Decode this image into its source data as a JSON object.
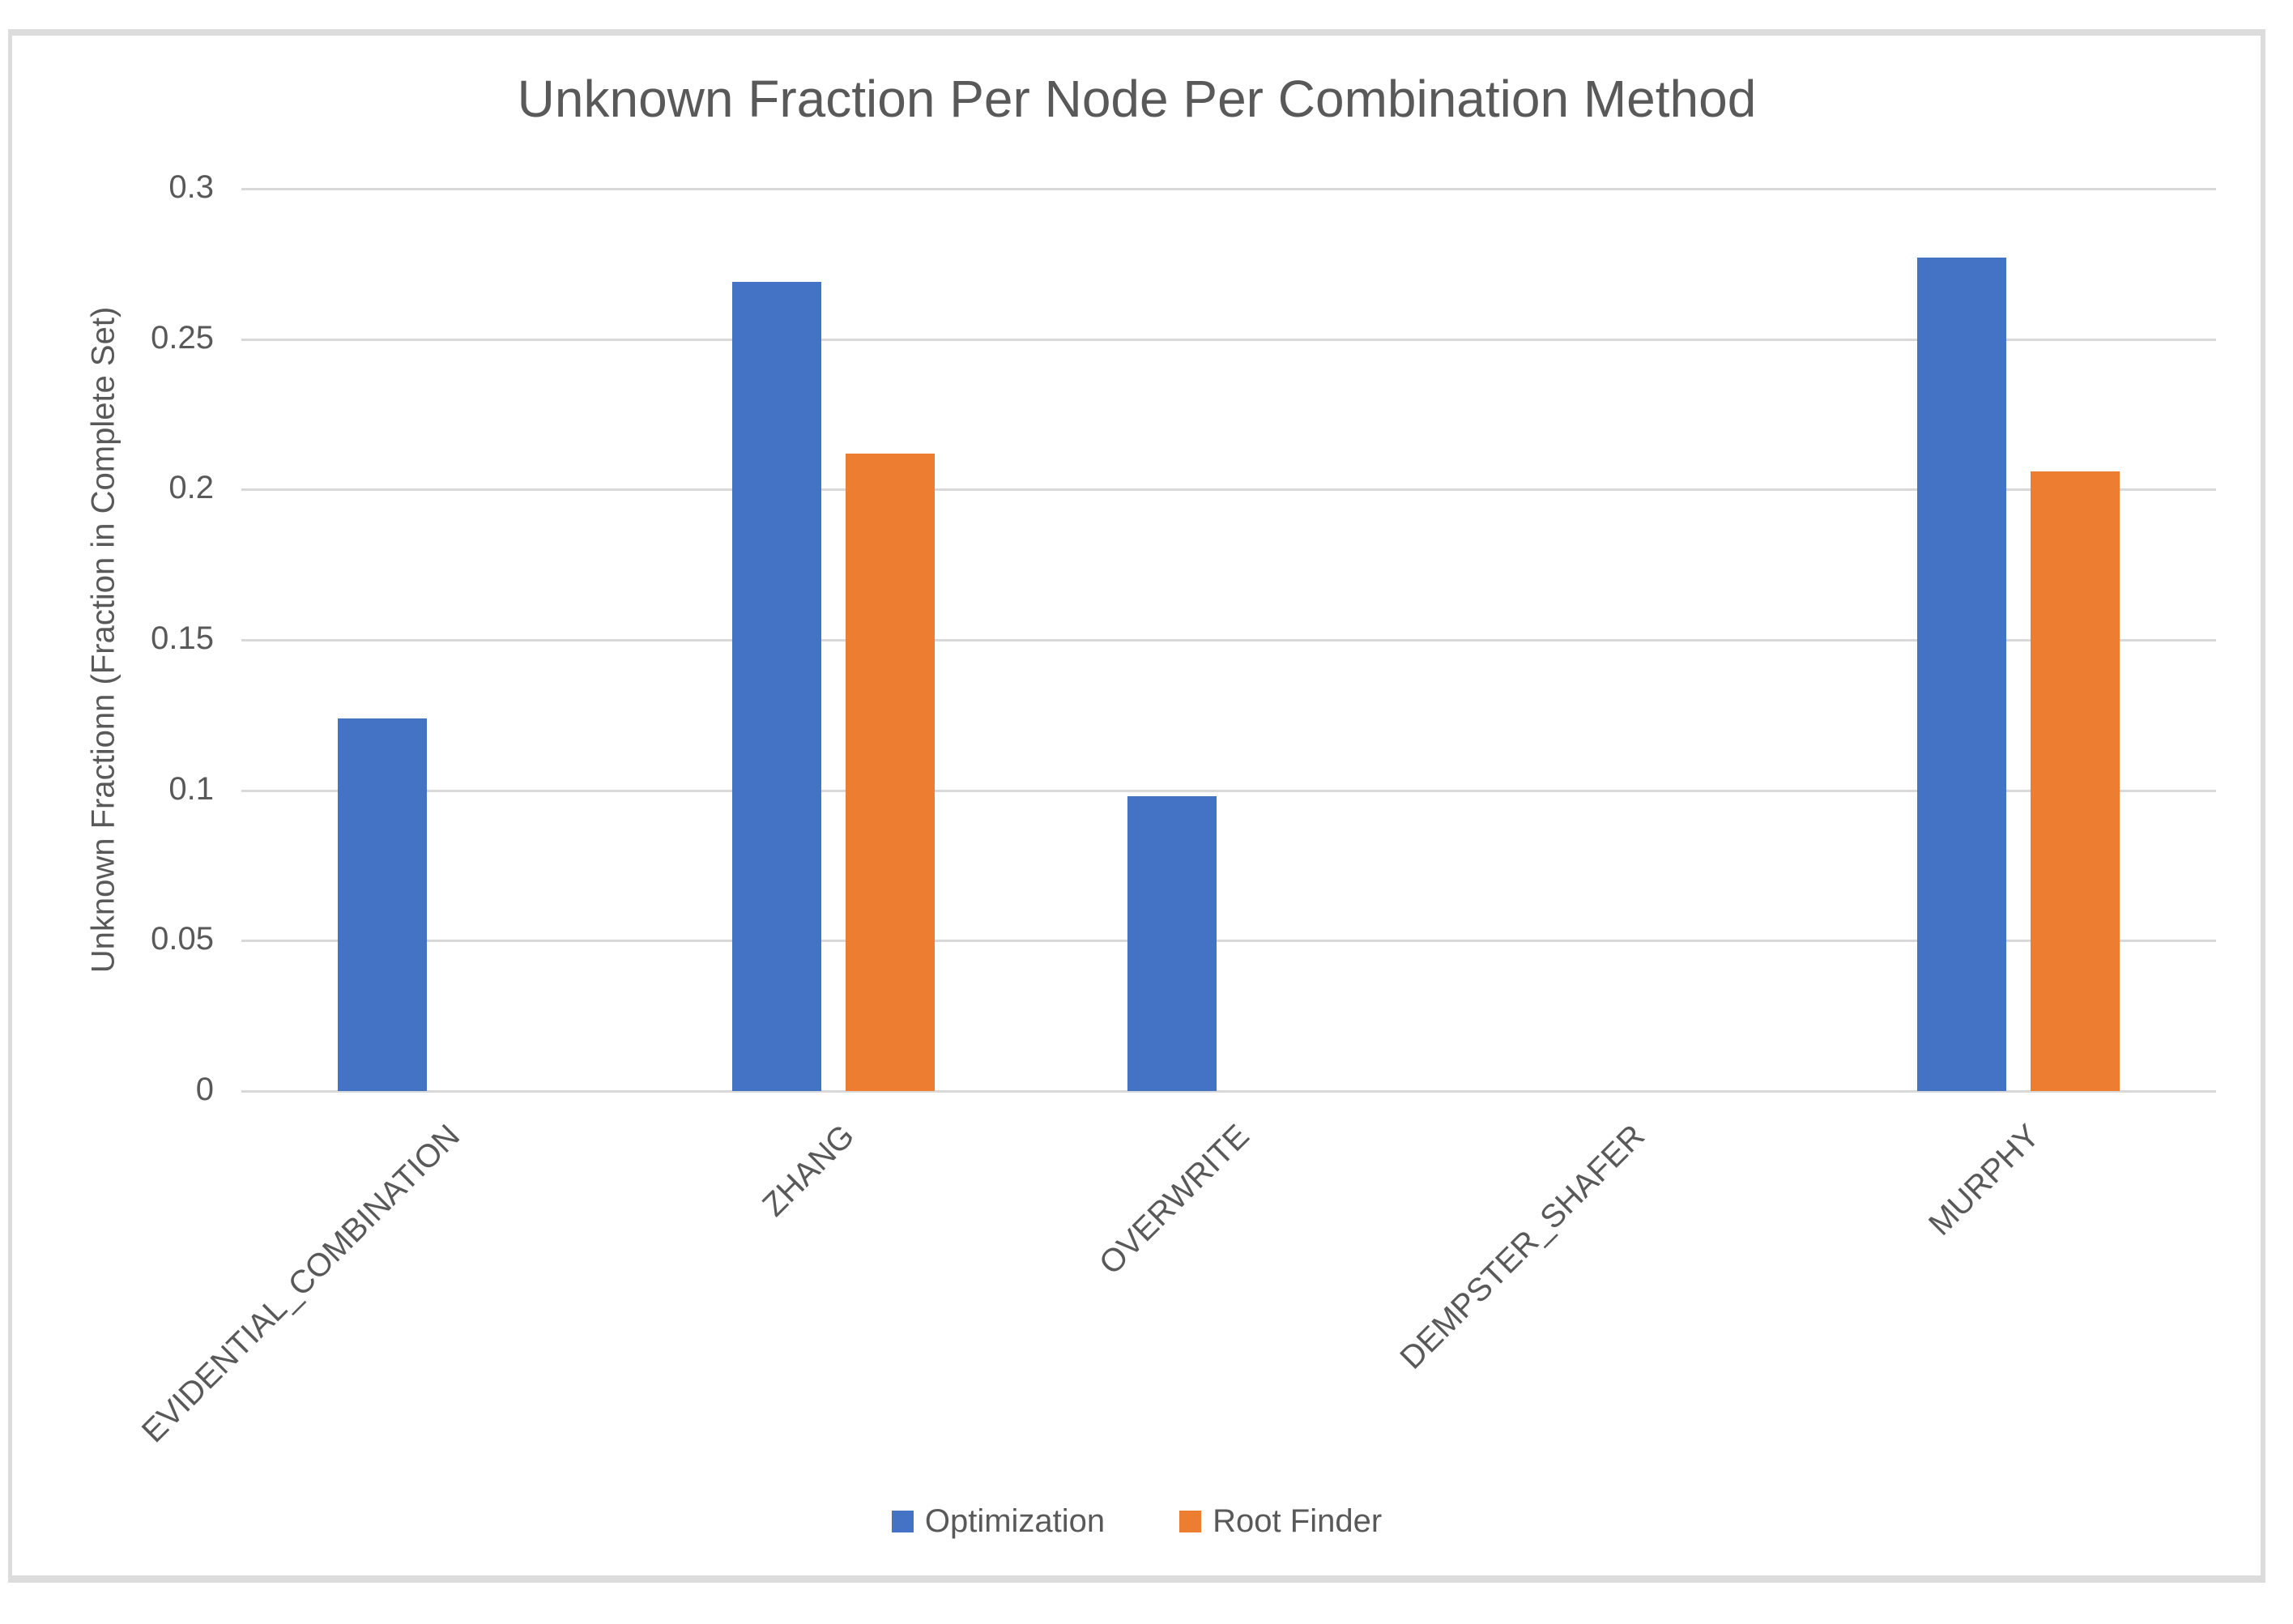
{
  "chart": {
    "title": "Unknown Fraction Per Node Per Combination Method",
    "y_axis_title": "Unknown Fractionn (Fraction in Complete Set)"
  },
  "chart_data": {
    "type": "bar",
    "title": "Unknown Fraction Per Node Per Combination Method",
    "categories": [
      "EVIDENTIAL_COMBINATION",
      "ZHANG",
      "OVERWRITE",
      "DEMPSTER_SHAFER",
      "MURPHY"
    ],
    "series": [
      {
        "name": "Optimization",
        "color": "#4472C4",
        "values": [
          0.124,
          0.269,
          0.098,
          0,
          0.277
        ]
      },
      {
        "name": "Root Finder",
        "color": "#ED7D31",
        "values": [
          0,
          0.212,
          0,
          0,
          0.206
        ]
      }
    ],
    "xlabel": "",
    "ylabel": "Unknown Fractionn (Fraction in Complete Set)",
    "ylim": [
      0,
      0.3
    ],
    "yticks": [
      "0",
      "0.05",
      "0.1",
      "0.15",
      "0.2",
      "0.25",
      "0.3"
    ],
    "grid": true,
    "legend_position": "bottom",
    "gridline_color": "#d9d9d9",
    "text_color": "#595959"
  }
}
